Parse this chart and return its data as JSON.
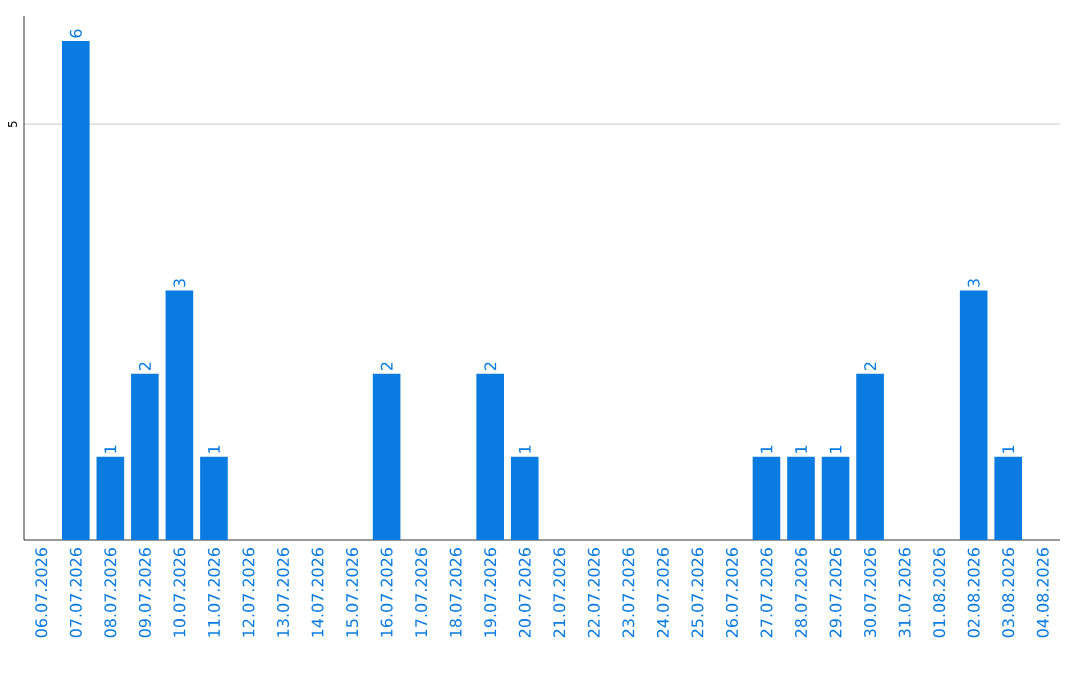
{
  "chart_data": {
    "type": "bar",
    "categories": [
      "06.07.2026",
      "07.07.2026",
      "08.07.2026",
      "09.07.2026",
      "10.07.2026",
      "11.07.2026",
      "12.07.2026",
      "13.07.2026",
      "14.07.2026",
      "15.07.2026",
      "16.07.2026",
      "17.07.2026",
      "18.07.2026",
      "19.07.2026",
      "20.07.2026",
      "21.07.2026",
      "22.07.2026",
      "23.07.2026",
      "24.07.2026",
      "25.07.2026",
      "26.07.2026",
      "27.07.2026",
      "28.07.2026",
      "29.07.2026",
      "30.07.2026",
      "31.07.2026",
      "01.08.2026",
      "02.08.2026",
      "03.08.2026",
      "04.08.2026"
    ],
    "values": [
      0,
      6,
      1,
      2,
      3,
      1,
      0,
      0,
      0,
      0,
      2,
      0,
      0,
      2,
      1,
      0,
      0,
      0,
      0,
      0,
      0,
      1,
      1,
      1,
      2,
      0,
      0,
      3,
      1,
      0
    ],
    "value_labels": [
      null,
      "6",
      "1",
      "2",
      "3",
      "1",
      null,
      null,
      null,
      null,
      "2",
      null,
      null,
      "2",
      "1",
      null,
      null,
      null,
      null,
      null,
      null,
      "1",
      "1",
      "1",
      "2",
      null,
      null,
      "3",
      "1",
      null
    ],
    "color": "#0a7be0",
    "ylim": [
      0,
      6.3
    ],
    "yticks": [
      5
    ],
    "grid": "y"
  }
}
